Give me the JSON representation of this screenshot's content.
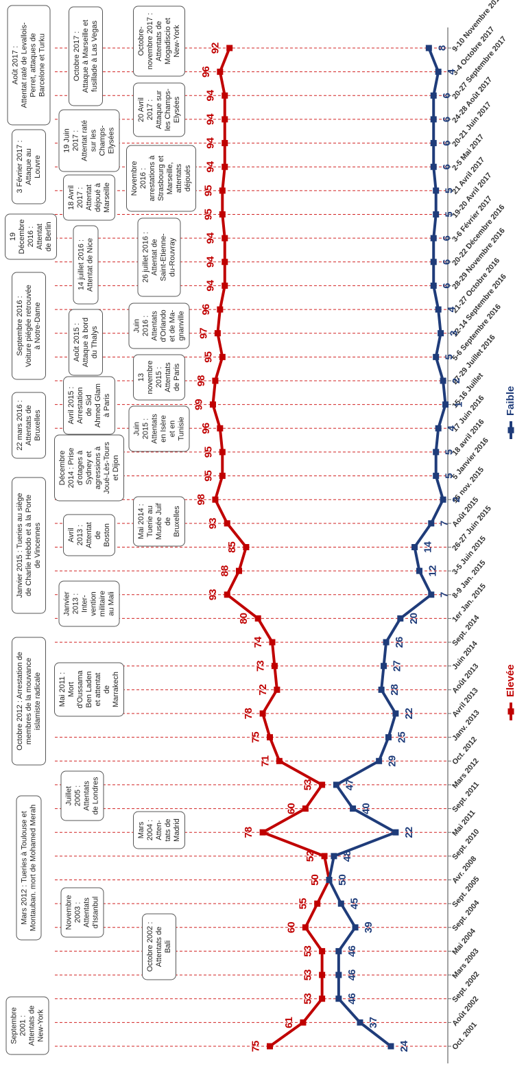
{
  "chart_data": {
    "type": "line",
    "categories": [
      "Oct. 2001",
      "Août 2002",
      "Sept. 2002",
      "Mars 2003",
      "Mai 2004",
      "Sept. 2004",
      "Sept. 2005",
      "Avr. 2008",
      "Sept. 2010",
      "Mai 2011",
      "Sept. 2011",
      "Mars 2012",
      "Oct. 2012",
      "Janv. 2013",
      "Avril 2013",
      "Août 2013",
      "Juin 2014",
      "Sept. 2014",
      "1er Jan. 2015",
      "8-9 Jan. 2015",
      "3-5 Juin 2015",
      "26-27 Juin 2015",
      "Août 2015",
      "16 nov. 2015",
      "5 Janvier 2016",
      "18 avril 2016",
      "17 Juin 2016",
      "15-16 Juillet",
      "27-29 Juillet 2016",
      "5-6 Septembre 2016",
      "12-14 Septembre 2016",
      "21-27 Octobre 2016",
      "28-29 Novembre 2016",
      "20-22 Décembre 2016",
      "3-6 Février 2017",
      "19-20 Avril 2017",
      "21 Avril 2017",
      "2-5 Mai 2017",
      "20-21 Juin 2017",
      "24-28 Août 2017",
      "20-27 Septembre 2017",
      "3-4 Octobre 2017",
      "9-10 Novembre 2017"
    ],
    "series": [
      {
        "name": "Elevée",
        "color": "#c00000",
        "values": [
          75,
          61,
          53,
          53,
          53,
          60,
          55,
          50,
          52,
          78,
          60,
          53,
          71,
          75,
          78,
          72,
          73,
          74,
          80,
          93,
          88,
          85,
          93,
          98,
          95,
          95,
          96,
          99,
          98,
          95,
          97,
          96,
          94,
          94,
          94,
          95,
          95,
          94,
          94,
          94,
          94,
          96,
          92
        ]
      },
      {
        "name": "Faible",
        "color": "#1f3c7a",
        "values": [
          24,
          37,
          46,
          46,
          46,
          39,
          45,
          50,
          48,
          22,
          40,
          47,
          29,
          25,
          22,
          28,
          27,
          26,
          20,
          7,
          12,
          14,
          7,
          2,
          5,
          5,
          4,
          1,
          2,
          5,
          3,
          4,
          6,
          6,
          6,
          5,
          5,
          6,
          6,
          6,
          6,
          4,
          8
        ]
      }
    ],
    "ylim": [
      0,
      100
    ],
    "annotations": [
      [
        "Septembre",
        "2001 :",
        "Attentats de",
        "New-York"
      ],
      [
        "Octobre 2002 :",
        "Attentats de",
        "Bali"
      ],
      [
        "Novembre",
        "2003 :",
        "Attentats",
        "d'Istanbul"
      ],
      [
        "Mars",
        "2004 :",
        "Atten-",
        "tats de",
        "Madrid"
      ],
      [
        "Juillet",
        "2005 :",
        "Attentats",
        "de Londres"
      ],
      [
        "Mai 2011 :",
        "Mort",
        "d'Oussama",
        "Ben Laden",
        "et attentat",
        "de",
        "Marrakech"
      ],
      [
        "Mars 2012 : Tueries à Toulouse et",
        "Montauban. mort de Mohamed Merah"
      ],
      [
        "Octobre 2012 : Arrestation de",
        "membres de la mouvance",
        "islamiste radicale"
      ],
      [
        "Janvier",
        "2013 :",
        "Inter-",
        "vention",
        "militaire",
        "au Mali"
      ],
      [
        "Avril",
        "2013 :",
        "Attentat",
        "de",
        "Boston"
      ],
      [
        "Mai 2014 :",
        "Tuerie au",
        "Musée Juif",
        "de",
        "Bruxelles"
      ],
      [
        "Décembre",
        "2014 : Prise",
        "d'otages à",
        "Sydney et",
        "agressions à",
        "Joué-Lès-Tours",
        "et Dijon"
      ],
      [
        "Janvier 2015 : Tueries au siège",
        "de Charlie Hebdo et à la Porte",
        "de Vincennes"
      ],
      [
        "Avril 2015 :",
        "Arrestation",
        "de Sid",
        "Ahmed Glam",
        "à Paris"
      ],
      [
        "Juin",
        "2015 :",
        "Attentats",
        "en Isère",
        "et en",
        "Tunisie"
      ],
      [
        "Août 2015 :",
        "Attaque à bord",
        "du Thalys"
      ],
      [
        "13",
        "novembre",
        "2015 :",
        "Attentats",
        "de Paris"
      ],
      [
        "22 mars 2016 :",
        "Attentats de",
        "Bruxelles"
      ],
      [
        "Juin",
        "2016 :",
        "Attentats",
        "d'Orlando",
        "et de Ma-",
        "gnanville"
      ],
      [
        "14 juillet 2016 :",
        "Attentat de Nice"
      ],
      [
        "26 juillet 2016 :",
        "Attentat de",
        "Saint-Etienne-",
        "du-Rouvray"
      ],
      [
        "Septembre 2016 :",
        "Voiture piégée retrouvée",
        "à Notre-Dame"
      ],
      [
        "Novembre",
        "2016 :",
        "arrestations à",
        "Strasbourg et",
        "Marseille,",
        "attentats",
        "déjoués"
      ],
      [
        "19",
        "Décembre",
        "2016 :",
        "Attentat",
        "de Berlin"
      ],
      [
        "3 Février 2017 :",
        "Attaque au",
        "Louvre"
      ],
      [
        "18 Avril",
        "2017 :",
        "Attentat",
        "déjoué à",
        "Marseille"
      ],
      [
        "20 Avril",
        "2017 :",
        "Attaque sur",
        "les Champs-",
        "Elysées"
      ],
      [
        "19 Juin",
        "2017 :",
        "Attentat raté",
        "sur les",
        "Champs-",
        "Elysées"
      ],
      [
        "Août 2017 :",
        "Attentat raté de Levallois-",
        "Perret, attaques de",
        "Barcelone et Turku"
      ],
      [
        "Octobre 2017 :",
        "Attaque à Marseille et",
        "fusillade à Las Vegas"
      ],
      [
        "Octobre-",
        "novembre 2017 :",
        "Attentats de",
        "Mogadiscio et",
        "New-York"
      ]
    ]
  }
}
